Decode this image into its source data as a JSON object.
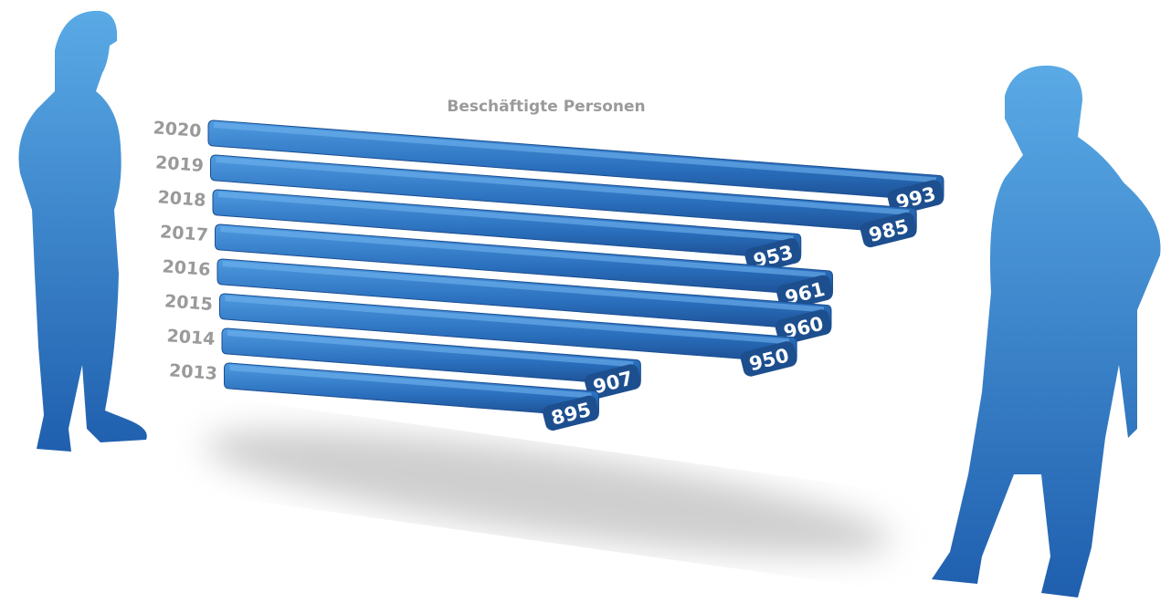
{
  "chart_data": {
    "type": "bar",
    "title": "Beschäftigte Personen",
    "categories": [
      "2020",
      "2019",
      "2018",
      "2017",
      "2016",
      "2015",
      "2014",
      "2013"
    ],
    "values": [
      993,
      985,
      953,
      961,
      960,
      950,
      907,
      895
    ],
    "color": "#2f78c4"
  }
}
